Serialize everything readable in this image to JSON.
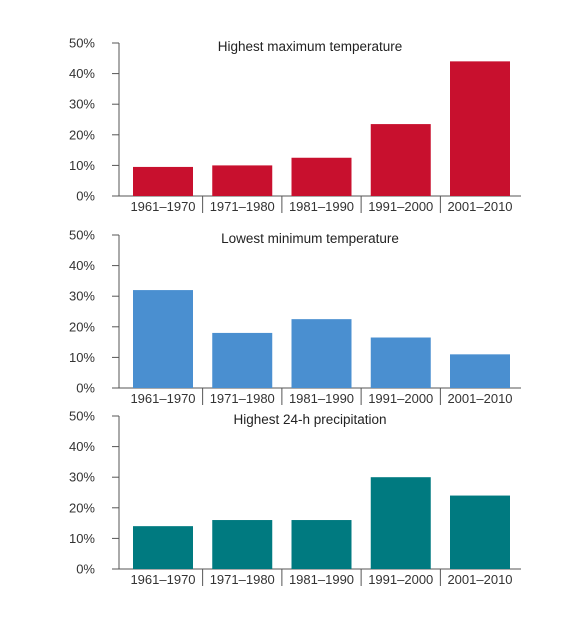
{
  "chart_data": [
    {
      "type": "bar",
      "title": "Highest maximum temperature",
      "categories": [
        "1961–1970",
        "1971–1980",
        "1981–1990",
        "1991–2000",
        "2001–2010"
      ],
      "values": [
        9.5,
        10,
        12.5,
        23.5,
        44
      ],
      "ylim": [
        0,
        50
      ],
      "yticks": [
        "0%",
        "10%",
        "20%",
        "30%",
        "40%",
        "50%"
      ],
      "color": "#c8102e",
      "grid": false
    },
    {
      "type": "bar",
      "title": "Lowest minimum temperature",
      "categories": [
        "1961–1970",
        "1971–1980",
        "1981–1990",
        "1991–2000",
        "2001–2010"
      ],
      "values": [
        32,
        18,
        22.5,
        16.5,
        11
      ],
      "ylim": [
        0,
        50
      ],
      "yticks": [
        "0%",
        "10%",
        "20%",
        "30%",
        "40%",
        "50%"
      ],
      "color": "#4a8fd0",
      "grid": false
    },
    {
      "type": "bar",
      "title": "Highest 24-h precipitation",
      "categories": [
        "1961–1970",
        "1971–1980",
        "1981–1990",
        "1991–2000",
        "2001–2010"
      ],
      "values": [
        14,
        16,
        16,
        30,
        24
      ],
      "ylim": [
        0,
        50
      ],
      "yticks": [
        "0%",
        "10%",
        "20%",
        "30%",
        "40%",
        "50%"
      ],
      "color": "#007a80",
      "grid": false
    }
  ]
}
